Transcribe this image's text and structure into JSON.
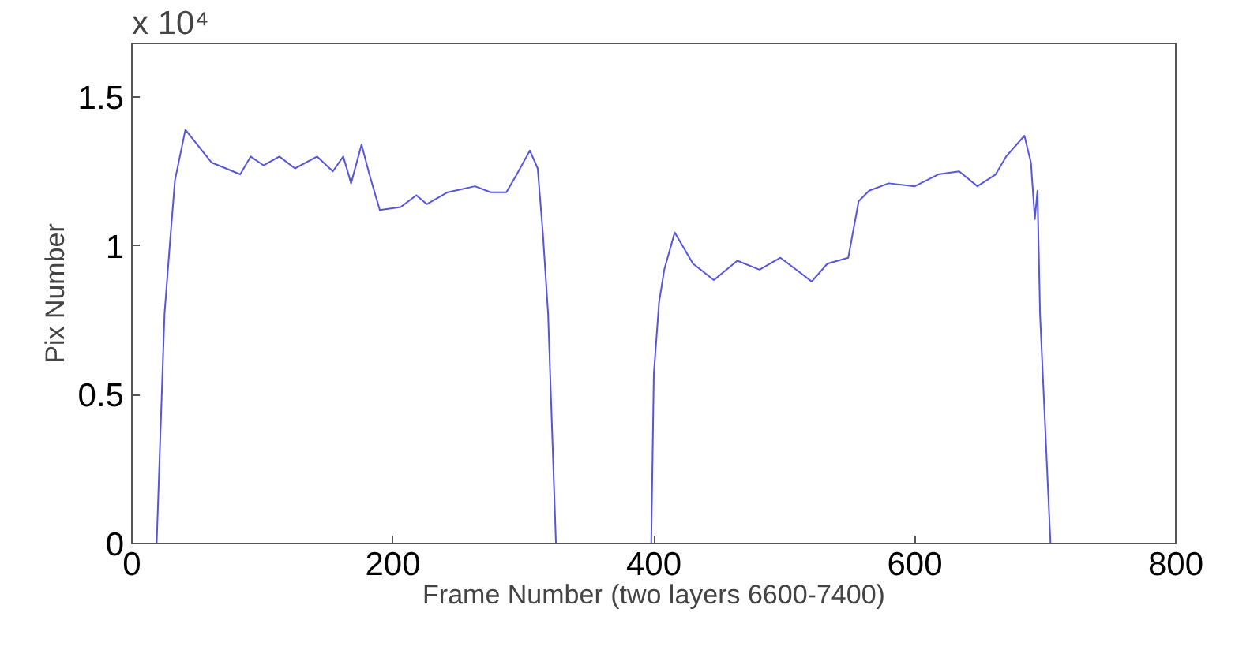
{
  "chart_data": {
    "type": "line",
    "xlabel": "Frame Number (two layers 6600-7400)",
    "ylabel": "Pix Number",
    "annotations": [
      "x 10⁴"
    ],
    "xlim": [
      0,
      800
    ],
    "ylim": [
      0,
      1.68
    ],
    "xticks": [
      0,
      200,
      400,
      600,
      800
    ],
    "yticks": [
      0,
      0.5,
      1,
      1.5
    ],
    "series": [
      {
        "color": "#5555dd",
        "x": [
          19,
          25,
          29,
          33,
          41,
          61,
          83,
          91,
          101,
          113,
          125,
          142,
          154,
          162,
          168,
          176,
          182,
          190,
          206,
          218,
          226,
          242,
          263,
          275,
          287,
          295,
          305,
          311,
          315,
          319,
          325,
          360,
          398,
          400,
          404,
          408,
          416,
          430,
          446,
          464,
          481,
          497,
          509,
          521,
          533,
          549,
          557,
          565,
          580,
          600,
          618,
          634,
          648,
          662,
          670,
          684,
          689,
          692,
          694,
          696,
          704
        ],
        "values": [
          0,
          0.77,
          1.0,
          1.22,
          1.39,
          1.28,
          1.24,
          1.3,
          1.27,
          1.3,
          1.26,
          1.3,
          1.25,
          1.3,
          1.21,
          1.34,
          1.24,
          1.12,
          1.13,
          1.17,
          1.14,
          1.18,
          1.2,
          1.18,
          1.18,
          1.24,
          1.32,
          1.26,
          1.04,
          0.77,
          0,
          null,
          0,
          0.57,
          0.81,
          0.92,
          1.045,
          0.94,
          0.885,
          0.95,
          0.92,
          0.96,
          0.92,
          0.88,
          0.94,
          0.96,
          1.15,
          1.185,
          1.21,
          1.2,
          1.24,
          1.25,
          1.2,
          1.24,
          1.3,
          1.37,
          1.28,
          1.09,
          1.185,
          0.77,
          0
        ]
      }
    ]
  }
}
